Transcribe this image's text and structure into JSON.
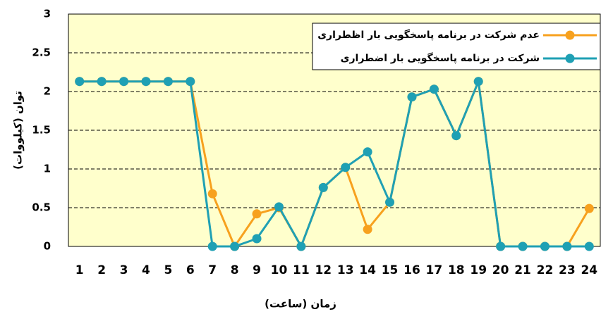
{
  "chart_data": {
    "type": "line",
    "x_label": "زمان (ساعت)",
    "y_label": "توان (کیلووات)",
    "categories": [
      "1",
      "2",
      "3",
      "4",
      "5",
      "6",
      "7",
      "8",
      "9",
      "10",
      "11",
      "12",
      "13",
      "14",
      "15",
      "16",
      "17",
      "18",
      "19",
      "20",
      "21",
      "22",
      "23",
      "24"
    ],
    "series": [
      {
        "name": "عدم شرکت در برنامه پاسخگویی بار اظطراری",
        "color": "#f7a11e",
        "values": [
          2.13,
          2.13,
          2.13,
          2.13,
          2.13,
          2.13,
          0.68,
          0,
          0.42,
          0.5,
          0,
          0.76,
          1.02,
          0.22,
          0.57,
          1.93,
          2.03,
          1.43,
          2.13,
          0,
          0,
          0,
          0,
          0.49
        ]
      },
      {
        "name": "شرکت در برنامه پاسخگویی بار اضطراری",
        "color": "#1fa0b4",
        "values": [
          2.13,
          2.13,
          2.13,
          2.13,
          2.13,
          2.13,
          0,
          0,
          0.1,
          0.51,
          0,
          0.76,
          1.02,
          1.22,
          0.57,
          1.93,
          2.03,
          1.43,
          2.13,
          0,
          0,
          0,
          0,
          0
        ]
      }
    ],
    "ylim": [
      0,
      3
    ],
    "yticks": [
      0,
      0.5,
      1,
      1.5,
      2,
      2.5,
      3
    ],
    "grid": true,
    "legend": "top-right"
  }
}
